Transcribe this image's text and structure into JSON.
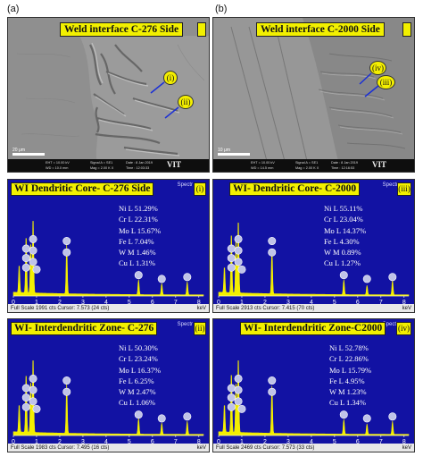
{
  "panel_letters": {
    "a": "(a)",
    "b": "(b)"
  },
  "sem": [
    {
      "title": "Weld interface C-276 Side",
      "markers": [
        "(i)",
        "(ii)"
      ],
      "scale_label": "20 μm",
      "info": {
        "eht": "EHT = 10.00 kV",
        "wd": "WD = 10.0 mm",
        "signal": "Signal A = SE1",
        "mag": "Mag = 2.00 K X",
        "date": "Date : 8 Jan 2019",
        "time": "Time : 12:03:33",
        "logo": "VIT"
      }
    },
    {
      "title": "Weld interface C-2000 Side",
      "markers": [
        "(iv)",
        "(iii)"
      ],
      "scale_label": "10 μm",
      "info": {
        "eht": "EHT = 10.00 kV",
        "wd": "WD = 14.5 mm",
        "signal": "Signal A = SE1",
        "mag": "Mag = 2.00 K X",
        "date": "Date : 8 Jan 2019",
        "time": "Time : 12:16:53",
        "logo": "VIT"
      }
    }
  ],
  "eds": [
    {
      "title": "WI Dendritic Core- C-276 Side",
      "point": "(i)",
      "spectrum": "Spectr",
      "composition": [
        "Ni L 51.29%",
        "Cr L 22.31%",
        "Mo L 15.67%",
        "Fe L 7.04%",
        "W M 1.46%",
        "Cu L 1.31%"
      ],
      "full_scale": "Full Scale 1991 cts Cursor: 7.573  (24 cts)",
      "unit": "keV"
    },
    {
      "title": "WI- Dendritic Core- C-2000",
      "point": "(iii)",
      "spectrum": "Spectr",
      "composition": [
        "Ni L 55.11%",
        "Cr L 23.04%",
        "Mo L 14.37%",
        "Fe L 4.30%",
        "W M 0.89%",
        "Cu L 1.27%"
      ],
      "full_scale": "Full Scale 2913 cts Cursor: 7.415  (70 cts)",
      "unit": "keV"
    },
    {
      "title": "WI- Interdendritic Zone- C-276",
      "point": "(ii)",
      "spectrum": "Spectr",
      "composition": [
        "Ni L 50.30%",
        "Cr L 23.24%",
        "Mo L 16.37%",
        "Fe L 6.25%",
        "W M 2.47%",
        "Cu L 1.06%"
      ],
      "full_scale": "Full Scale 1983 cts Cursor: 7.495  (16 cts)",
      "unit": "keV"
    },
    {
      "title": "WI- Interdendritic Zone-C2000",
      "point": "(iv)",
      "spectrum": "Spectr",
      "composition": [
        "Ni L 52.78%",
        "Cr L 22.86%",
        "Mo L 15.79%",
        "Fe L 4.95%",
        "W M 1.23%",
        "Cu L 1.34%"
      ],
      "full_scale": "Full Scale 2469 cts Cursor: 7.573  (33 cts)",
      "unit": "keV"
    }
  ],
  "axis_ticks": [
    "0",
    "1",
    "2",
    "3",
    "4",
    "5",
    "6",
    "7",
    "8"
  ],
  "colors": {
    "eds_background": "#1212a3",
    "spectrum": "#f4ef00",
    "label_box": "#f2f000",
    "element_marker": "#bfc3e8"
  }
}
